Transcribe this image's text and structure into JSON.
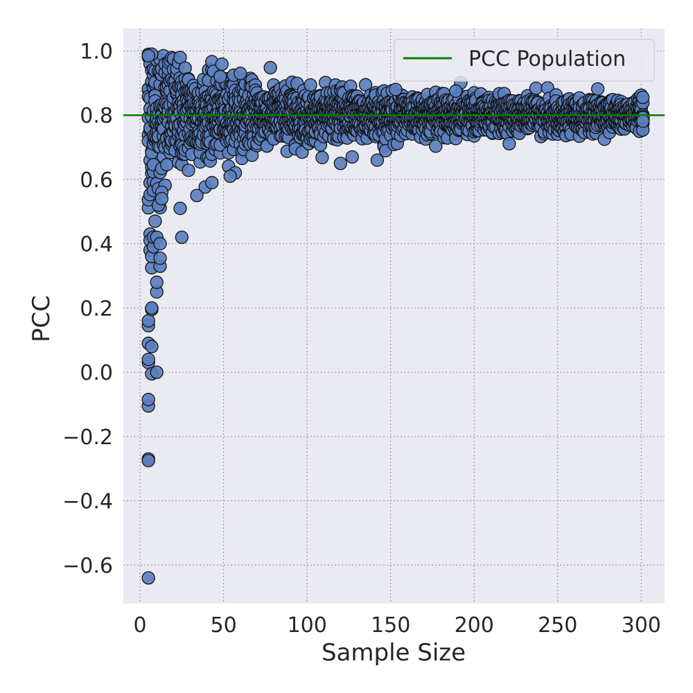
{
  "chart_data": {
    "type": "scatter",
    "xlabel": "Sample Size",
    "ylabel": "PCC",
    "xlim": [
      -10,
      314
    ],
    "ylim": [
      -0.72,
      1.07
    ],
    "xticks": [
      0,
      50,
      100,
      150,
      200,
      250,
      300
    ],
    "yticks": [
      -0.6,
      -0.4,
      -0.2,
      0.0,
      0.2,
      0.4,
      0.6,
      0.8,
      1.0
    ],
    "ytick_labels": [
      "−0.6",
      "−0.4",
      "−0.2",
      "0.0",
      "0.2",
      "0.4",
      "0.6",
      "0.8",
      "1.0"
    ],
    "grid": true,
    "legend_position": "top-right",
    "population_line": {
      "label": "PCC Population",
      "y": 0.8,
      "color": "#008000"
    },
    "point_color": "#5b7fbf",
    "plot_background": "#eaeaf2",
    "x_range": [
      5,
      301
    ],
    "points_per_sample_size": 10,
    "notable_points": [
      {
        "x": 5,
        "y": -0.64
      },
      {
        "x": 5,
        "y": -0.27
      },
      {
        "x": 5,
        "y": -0.275
      },
      {
        "x": 5,
        "y": -0.105
      },
      {
        "x": 5,
        "y": -0.085
      },
      {
        "x": 5,
        "y": 0.03
      },
      {
        "x": 5,
        "y": 0.04
      },
      {
        "x": 5,
        "y": 0.09
      },
      {
        "x": 5,
        "y": 0.145
      },
      {
        "x": 5,
        "y": 0.16
      },
      {
        "x": 6,
        "y": 0.38
      },
      {
        "x": 6,
        "y": 0.43
      },
      {
        "x": 6,
        "y": 0.41
      },
      {
        "x": 7,
        "y": 0.08
      },
      {
        "x": 7,
        "y": -0.005
      },
      {
        "x": 7,
        "y": 0.195
      },
      {
        "x": 7,
        "y": 0.2
      },
      {
        "x": 7,
        "y": 0.325
      },
      {
        "x": 7,
        "y": 0.36
      },
      {
        "x": 8,
        "y": 0.39
      },
      {
        "x": 8,
        "y": 0.42
      },
      {
        "x": 9,
        "y": 0.47
      },
      {
        "x": 10,
        "y": 0.0
      },
      {
        "x": 10,
        "y": 0.25
      },
      {
        "x": 10,
        "y": 0.28
      },
      {
        "x": 10,
        "y": 0.42
      },
      {
        "x": 11,
        "y": 0.52
      },
      {
        "x": 12,
        "y": 0.4
      },
      {
        "x": 12,
        "y": 0.33
      },
      {
        "x": 12,
        "y": 0.355
      },
      {
        "x": 13,
        "y": 0.56
      },
      {
        "x": 13,
        "y": 0.54
      },
      {
        "x": 24,
        "y": 0.51
      },
      {
        "x": 25,
        "y": 0.42
      },
      {
        "x": 34,
        "y": 0.55
      },
      {
        "x": 43,
        "y": 0.59
      },
      {
        "x": 54,
        "y": 0.61
      },
      {
        "x": 120,
        "y": 0.65
      },
      {
        "x": 127,
        "y": 0.67
      },
      {
        "x": 142,
        "y": 0.66
      },
      {
        "x": 153,
        "y": 0.88
      },
      {
        "x": 189,
        "y": 0.875
      },
      {
        "x": 60,
        "y": 0.93
      },
      {
        "x": 48,
        "y": 0.92
      },
      {
        "x": 7,
        "y": 0.99
      },
      {
        "x": 5,
        "y": 0.985
      }
    ]
  }
}
